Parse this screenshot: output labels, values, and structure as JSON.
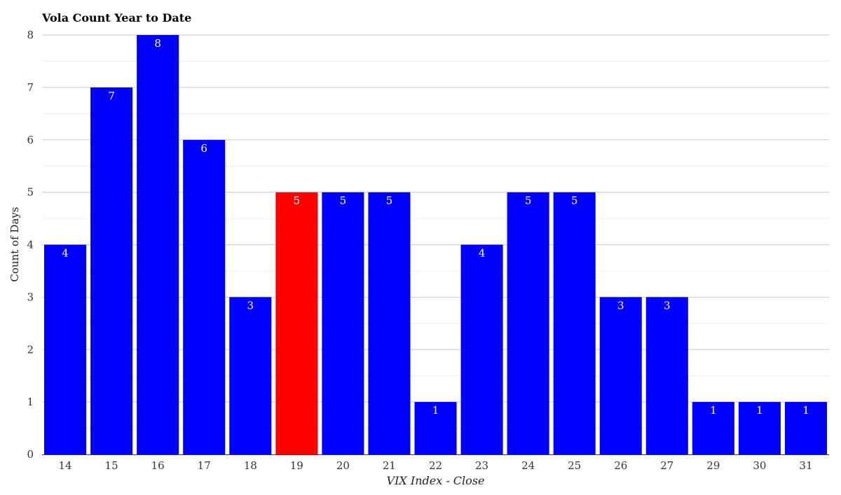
{
  "chart_data": {
    "type": "bar",
    "title": "Vola Count Year to Date",
    "xlabel": "VIX Index - Close",
    "ylabel": "Count of Days",
    "categories": [
      "14",
      "15",
      "16",
      "17",
      "18",
      "19",
      "20",
      "21",
      "22",
      "23",
      "24",
      "25",
      "26",
      "27",
      "29",
      "30",
      "31"
    ],
    "values": [
      4,
      7,
      8,
      6,
      3,
      5,
      5,
      5,
      1,
      4,
      5,
      5,
      3,
      3,
      1,
      1,
      1
    ],
    "highlight_category": "19",
    "ylim": [
      0,
      8
    ],
    "yticks": [
      "0",
      "1",
      "2",
      "3",
      "4",
      "5",
      "6",
      "7",
      "8"
    ],
    "grid": true,
    "legend": "none",
    "colors": {
      "bar": "#0000ff",
      "highlight": "#ff0000",
      "grid_major": "#c8c8c8",
      "grid_minor": "#ececec"
    }
  }
}
